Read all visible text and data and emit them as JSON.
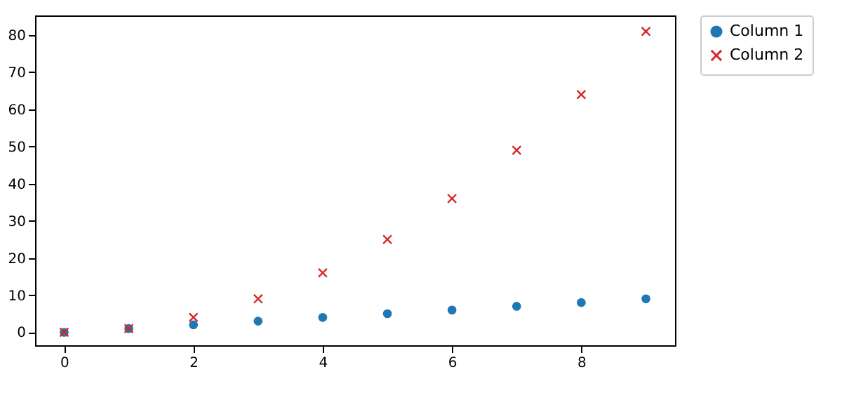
{
  "chart_data": {
    "type": "scatter",
    "x": [
      0,
      1,
      2,
      3,
      4,
      5,
      6,
      7,
      8,
      9
    ],
    "series": [
      {
        "name": "Column 1",
        "color": "#1f77b4",
        "marker": "circle",
        "values": [
          0,
          1,
          2,
          3,
          4,
          5,
          6,
          7,
          8,
          9
        ]
      },
      {
        "name": "Column 2",
        "color": "#d62728",
        "marker": "cross",
        "values": [
          0,
          1,
          4,
          9,
          16,
          25,
          36,
          49,
          64,
          81
        ]
      }
    ],
    "xlim": [
      -0.45,
      9.45
    ],
    "xticks": [
      0,
      2,
      4,
      6,
      8
    ],
    "ylim": [
      -3.5,
      85.3
    ],
    "yticks": [
      0,
      10,
      20,
      30,
      40,
      50,
      60,
      70,
      80
    ],
    "grid": false,
    "legend": "top right"
  }
}
